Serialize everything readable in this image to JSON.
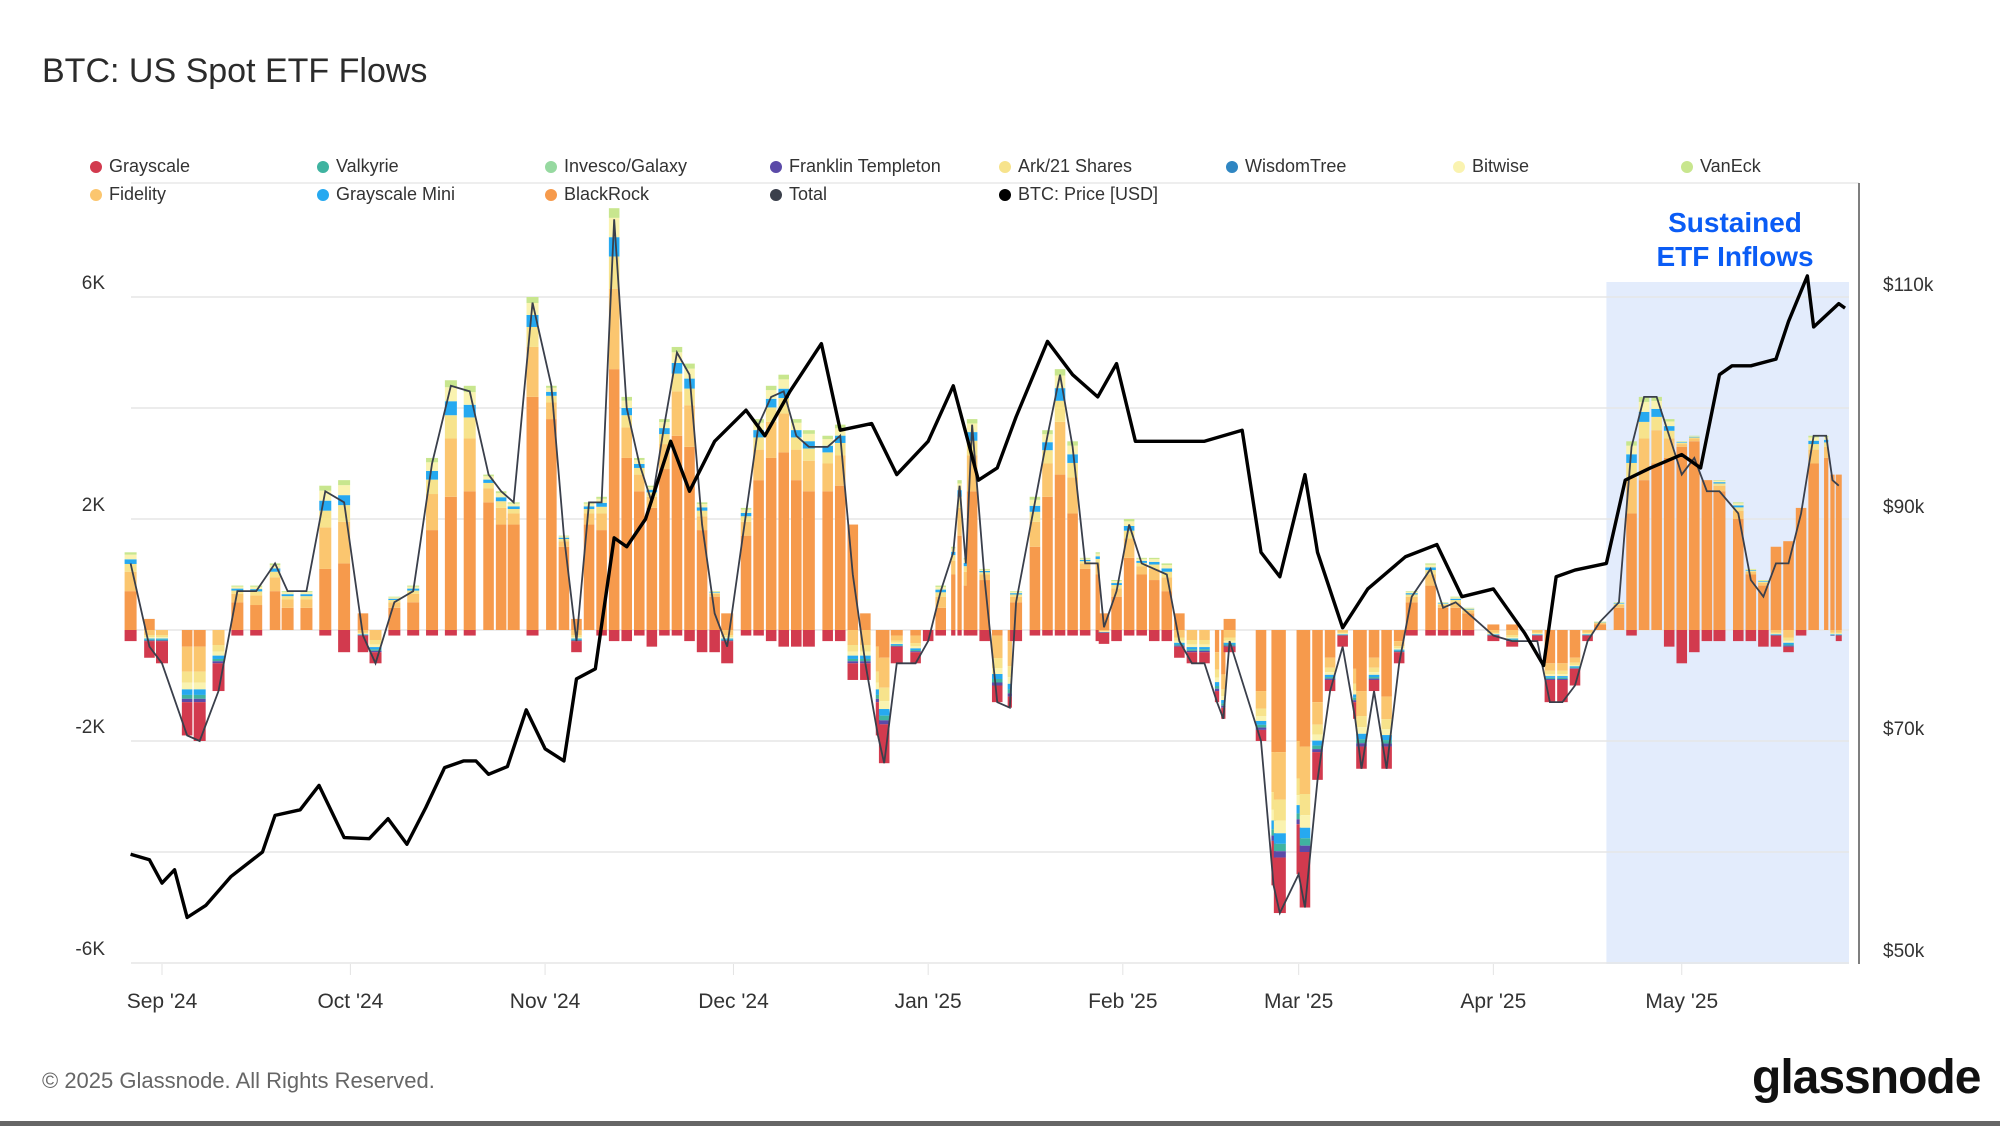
{
  "chart_data": {
    "type": "bar",
    "title": "BTC: US Spot ETF Flows",
    "annotation": "Sustained ETF Inflows",
    "annotation_lines": [
      "Sustained",
      "ETF Inflows"
    ],
    "highlight_range": [
      "2025-04-19",
      "2025-05-28"
    ],
    "legend": [
      {
        "name": "Grayscale",
        "color": "#d23a4e"
      },
      {
        "name": "Valkyrie",
        "color": "#3fb3a0"
      },
      {
        "name": "Invesco/Galaxy",
        "color": "#96d9a0"
      },
      {
        "name": "Franklin Templeton",
        "color": "#5b4aa8"
      },
      {
        "name": "Ark/21 Shares",
        "color": "#f7e38c"
      },
      {
        "name": "WisdomTree",
        "color": "#2f86c2"
      },
      {
        "name": "Bitwise",
        "color": "#faf3b0"
      },
      {
        "name": "VanEck",
        "color": "#c8e68e"
      },
      {
        "name": "Fidelity",
        "color": "#fbc66f"
      },
      {
        "name": "Grayscale Mini",
        "color": "#26a9f0"
      },
      {
        "name": "BlackRock",
        "color": "#f69a4c"
      },
      {
        "name": "Total",
        "color": "#3a3f4b"
      },
      {
        "name": "BTC: Price [USD]",
        "color": "#000000"
      }
    ],
    "legend_placement": "top",
    "y_left": {
      "ticks": [
        6000,
        2000,
        -2000,
        -6000
      ],
      "tick_labels": [
        "6K",
        "2K",
        "-2K",
        "-6K"
      ],
      "range": [
        -6000,
        6000
      ],
      "grid_step": 2000
    },
    "y_right": {
      "ticks": [
        110000,
        90000,
        70000,
        50000
      ],
      "tick_labels": [
        "$110k",
        "$90k",
        "$70k",
        "$50k"
      ],
      "range": [
        50000,
        110000
      ]
    },
    "x_ticks": [
      {
        "date": "2024-09-01",
        "label": "Sep '24"
      },
      {
        "date": "2024-10-01",
        "label": "Oct '24"
      },
      {
        "date": "2024-11-01",
        "label": "Nov '24"
      },
      {
        "date": "2024-12-01",
        "label": "Dec '24"
      },
      {
        "date": "2025-01-01",
        "label": "Jan '25"
      },
      {
        "date": "2025-02-01",
        "label": "Feb '25"
      },
      {
        "date": "2025-03-01",
        "label": "Mar '25"
      },
      {
        "date": "2025-04-01",
        "label": "Apr '25"
      },
      {
        "date": "2025-05-01",
        "label": "May '25"
      }
    ],
    "grid": true,
    "flows_columns": [
      "date",
      "Total",
      "BlackRock",
      "Grayscale"
    ],
    "flows": [
      [
        "2024-08-27",
        1200,
        700,
        -200
      ],
      [
        "2024-08-30",
        -300,
        200,
        -300
      ],
      [
        "2024-09-01",
        -600,
        0,
        -400
      ],
      [
        "2024-09-05",
        -1900,
        -300,
        -600
      ],
      [
        "2024-09-07",
        -2000,
        -300,
        -700
      ],
      [
        "2024-09-10",
        -1100,
        0,
        -500
      ],
      [
        "2024-09-13",
        700,
        500,
        -100
      ],
      [
        "2024-09-16",
        700,
        450,
        -100
      ],
      [
        "2024-09-19",
        1200,
        700,
        0
      ],
      [
        "2024-09-21",
        700,
        400,
        0
      ],
      [
        "2024-09-24",
        700,
        400,
        0
      ],
      [
        "2024-09-27",
        2500,
        1100,
        -100
      ],
      [
        "2024-09-30",
        2300,
        1200,
        -400
      ],
      [
        "2024-10-03",
        -100,
        300,
        -300
      ],
      [
        "2024-10-05",
        -600,
        0,
        -200
      ],
      [
        "2024-10-08",
        500,
        400,
        -100
      ],
      [
        "2024-10-11",
        700,
        500,
        -100
      ],
      [
        "2024-10-14",
        3000,
        1800,
        -100
      ],
      [
        "2024-10-17",
        4400,
        2400,
        -100
      ],
      [
        "2024-10-20",
        4300,
        2500,
        -100
      ],
      [
        "2024-10-23",
        2800,
        2300,
        0
      ],
      [
        "2024-10-25",
        2500,
        1900,
        0
      ],
      [
        "2024-10-27",
        2300,
        1900,
        0
      ],
      [
        "2024-10-30",
        5900,
        4200,
        -100
      ],
      [
        "2024-11-02",
        4400,
        3800,
        0
      ],
      [
        "2024-11-04",
        1700,
        1500,
        0
      ],
      [
        "2024-11-06",
        -200,
        200,
        -200
      ],
      [
        "2024-11-08",
        2300,
        1900,
        0
      ],
      [
        "2024-11-10",
        2300,
        1800,
        -100
      ],
      [
        "2024-11-12",
        7400,
        4700,
        -200
      ],
      [
        "2024-11-14",
        4000,
        3100,
        -200
      ],
      [
        "2024-11-16",
        3000,
        2500,
        -100
      ],
      [
        "2024-11-18",
        2300,
        2200,
        -300
      ],
      [
        "2024-11-20",
        3700,
        2900,
        -100
      ],
      [
        "2024-11-22",
        5000,
        3500,
        -100
      ],
      [
        "2024-11-24",
        4600,
        3300,
        -200
      ],
      [
        "2024-11-26",
        1900,
        1800,
        -400
      ],
      [
        "2024-11-28",
        300,
        600,
        -400
      ],
      [
        "2024-11-30",
        -300,
        300,
        -400
      ],
      [
        "2024-12-03",
        2100,
        1700,
        -100
      ],
      [
        "2024-12-05",
        3700,
        2700,
        -100
      ],
      [
        "2024-12-07",
        4200,
        3100,
        -200
      ],
      [
        "2024-12-09",
        4300,
        3200,
        -300
      ],
      [
        "2024-12-11",
        3500,
        2700,
        -300
      ],
      [
        "2024-12-13",
        3300,
        2500,
        -300
      ],
      [
        "2024-12-16",
        3300,
        2500,
        -200
      ],
      [
        "2024-12-18",
        3500,
        2600,
        -200
      ],
      [
        "2024-12-20",
        1000,
        1900,
        -300
      ],
      [
        "2024-12-22",
        -600,
        300,
        -300
      ],
      [
        "2024-12-24",
        -1900,
        -300,
        -600
      ],
      [
        "2024-12-25",
        -2400,
        -500,
        -700
      ],
      [
        "2024-12-27",
        -600,
        -100,
        -300
      ],
      [
        "2024-12-30",
        -600,
        -100,
        -200
      ],
      [
        "2025-01-01",
        -200,
        0,
        -200
      ],
      [
        "2025-01-03",
        700,
        400,
        -100
      ],
      [
        "2025-01-05",
        1400,
        1000,
        -100
      ],
      [
        "2025-01-06",
        2600,
        1700,
        -100
      ],
      [
        "2025-01-07",
        1200,
        800,
        -100
      ],
      [
        "2025-01-08",
        3700,
        2500,
        -100
      ],
      [
        "2025-01-10",
        900,
        900,
        -200
      ],
      [
        "2025-01-12",
        -1300,
        -100,
        -300
      ],
      [
        "2025-01-14",
        -1400,
        -200,
        -200
      ],
      [
        "2025-01-15",
        500,
        500,
        -200
      ],
      [
        "2025-01-18",
        2300,
        1500,
        -100
      ],
      [
        "2025-01-20",
        3500,
        2400,
        -100
      ],
      [
        "2025-01-22",
        4600,
        2800,
        -100
      ],
      [
        "2025-01-24",
        3300,
        2100,
        -100
      ],
      [
        "2025-01-26",
        1200,
        1100,
        -100
      ],
      [
        "2025-01-28",
        1200,
        1000,
        -200
      ],
      [
        "2025-01-29",
        50,
        300,
        -200
      ],
      [
        "2025-01-31",
        700,
        600,
        -200
      ],
      [
        "2025-02-02",
        1900,
        1300,
        -100
      ],
      [
        "2025-02-04",
        1200,
        1000,
        -100
      ],
      [
        "2025-02-06",
        1100,
        900,
        -200
      ],
      [
        "2025-02-08",
        1000,
        700,
        -200
      ],
      [
        "2025-02-10",
        -200,
        300,
        -200
      ],
      [
        "2025-02-12",
        -600,
        0,
        -200
      ],
      [
        "2025-02-14",
        -600,
        0,
        -200
      ],
      [
        "2025-02-16",
        -1300,
        -400,
        -200
      ],
      [
        "2025-02-17",
        -1600,
        -800,
        -200
      ],
      [
        "2025-02-18",
        -200,
        200,
        -100
      ],
      [
        "2025-02-23",
        -2000,
        -1100,
        -200
      ],
      [
        "2025-02-25",
        -4600,
        -2200,
        -800
      ],
      [
        "2025-02-26",
        -5100,
        -2200,
        -1000
      ],
      [
        "2025-03-01",
        -4400,
        -2000,
        -900
      ],
      [
        "2025-03-02",
        -5000,
        -2100,
        -1000
      ],
      [
        "2025-03-04",
        -2700,
        -1300,
        -500
      ],
      [
        "2025-03-06",
        -1100,
        -500,
        -200
      ],
      [
        "2025-03-08",
        -300,
        0,
        -200
      ],
      [
        "2025-03-10",
        -1600,
        -700,
        -300
      ],
      [
        "2025-03-11",
        -2500,
        -1100,
        -400
      ],
      [
        "2025-03-13",
        -1100,
        -500,
        -200
      ],
      [
        "2025-03-15",
        -2500,
        -1200,
        -400
      ],
      [
        "2025-03-17",
        -600,
        -200,
        -200
      ],
      [
        "2025-03-19",
        600,
        500,
        -100
      ],
      [
        "2025-03-22",
        1100,
        800,
        -100
      ],
      [
        "2025-03-24",
        400,
        400,
        -100
      ],
      [
        "2025-03-26",
        500,
        400,
        -100
      ],
      [
        "2025-03-28",
        300,
        300,
        -100
      ],
      [
        "2025-04-01",
        -100,
        100,
        -100
      ],
      [
        "2025-04-04",
        -200,
        100,
        -100
      ],
      [
        "2025-04-08",
        -200,
        0,
        -100
      ],
      [
        "2025-04-10",
        -1300,
        -600,
        -400
      ],
      [
        "2025-04-12",
        -1300,
        -600,
        -400
      ],
      [
        "2025-04-14",
        -1000,
        -500,
        -300
      ],
      [
        "2025-04-16",
        -200,
        0,
        -100
      ],
      [
        "2025-04-18",
        150,
        100,
        0
      ],
      [
        "2025-04-21",
        500,
        400,
        0
      ],
      [
        "2025-04-23",
        3300,
        2100,
        -100
      ],
      [
        "2025-04-25",
        4200,
        2700,
        0
      ],
      [
        "2025-04-27",
        4200,
        3000,
        0
      ],
      [
        "2025-04-29",
        3500,
        3100,
        -300
      ],
      [
        "2025-05-01",
        2800,
        3300,
        -600
      ],
      [
        "2025-05-03",
        3100,
        3400,
        -400
      ],
      [
        "2025-05-05",
        2500,
        2700,
        -200
      ],
      [
        "2025-05-07",
        2500,
        2500,
        -200
      ],
      [
        "2025-05-10",
        2100,
        2000,
        -200
      ],
      [
        "2025-05-12",
        900,
        1000,
        -200
      ],
      [
        "2025-05-14",
        600,
        800,
        -300
      ],
      [
        "2025-05-16",
        1200,
        1500,
        -200
      ],
      [
        "2025-05-18",
        1200,
        1600,
        -100
      ],
      [
        "2025-05-20",
        2100,
        2200,
        -100
      ],
      [
        "2025-05-22",
        3500,
        3000,
        0
      ],
      [
        "2025-05-24",
        3500,
        3100,
        0
      ],
      [
        "2025-05-25",
        2700,
        2800,
        0
      ],
      [
        "2025-05-26",
        2600,
        2800,
        -100
      ]
    ],
    "price_columns": [
      "date",
      "BTC: Price [USD]"
    ],
    "price": [
      [
        "2024-08-27",
        59800
      ],
      [
        "2024-08-30",
        59300
      ],
      [
        "2024-09-01",
        57200
      ],
      [
        "2024-09-03",
        58400
      ],
      [
        "2024-09-05",
        54100
      ],
      [
        "2024-09-08",
        55200
      ],
      [
        "2024-09-12",
        57800
      ],
      [
        "2024-09-17",
        60000
      ],
      [
        "2024-09-19",
        63300
      ],
      [
        "2024-09-23",
        63800
      ],
      [
        "2024-09-26",
        66000
      ],
      [
        "2024-09-30",
        61300
      ],
      [
        "2024-10-04",
        61200
      ],
      [
        "2024-10-07",
        63000
      ],
      [
        "2024-10-10",
        60700
      ],
      [
        "2024-10-13",
        64000
      ],
      [
        "2024-10-16",
        67600
      ],
      [
        "2024-10-19",
        68200
      ],
      [
        "2024-10-21",
        68200
      ],
      [
        "2024-10-23",
        67000
      ],
      [
        "2024-10-26",
        67700
      ],
      [
        "2024-10-29",
        72800
      ],
      [
        "2024-11-01",
        69300
      ],
      [
        "2024-11-04",
        68200
      ],
      [
        "2024-11-06",
        75600
      ],
      [
        "2024-11-09",
        76500
      ],
      [
        "2024-11-12",
        88300
      ],
      [
        "2024-11-14",
        87500
      ],
      [
        "2024-11-17",
        90000
      ],
      [
        "2024-11-21",
        97000
      ],
      [
        "2024-11-24",
        92500
      ],
      [
        "2024-11-28",
        97000
      ],
      [
        "2024-12-03",
        99800
      ],
      [
        "2024-12-06",
        97500
      ],
      [
        "2024-12-10",
        101500
      ],
      [
        "2024-12-15",
        105800
      ],
      [
        "2024-12-18",
        98000
      ],
      [
        "2024-12-23",
        98600
      ],
      [
        "2024-12-27",
        94000
      ],
      [
        "2025-01-01",
        97000
      ],
      [
        "2025-01-05",
        102000
      ],
      [
        "2025-01-09",
        93500
      ],
      [
        "2025-01-12",
        94600
      ],
      [
        "2025-01-15",
        99200
      ],
      [
        "2025-01-20",
        106000
      ],
      [
        "2025-01-24",
        103000
      ],
      [
        "2025-01-28",
        101000
      ],
      [
        "2025-01-31",
        104000
      ],
      [
        "2025-02-03",
        97000
      ],
      [
        "2025-02-07",
        97000
      ],
      [
        "2025-02-14",
        97000
      ],
      [
        "2025-02-20",
        98000
      ],
      [
        "2025-02-23",
        87000
      ],
      [
        "2025-02-26",
        84800
      ],
      [
        "2025-03-02",
        94000
      ],
      [
        "2025-03-04",
        87000
      ],
      [
        "2025-03-08",
        80200
      ],
      [
        "2025-03-12",
        83700
      ],
      [
        "2025-03-18",
        86600
      ],
      [
        "2025-03-23",
        87700
      ],
      [
        "2025-03-27",
        83000
      ],
      [
        "2025-04-01",
        83700
      ],
      [
        "2025-04-06",
        79700
      ],
      [
        "2025-04-09",
        76800
      ],
      [
        "2025-04-11",
        84800
      ],
      [
        "2025-04-14",
        85400
      ],
      [
        "2025-04-19",
        86000
      ],
      [
        "2025-04-22",
        93500
      ],
      [
        "2025-04-26",
        94600
      ],
      [
        "2025-05-01",
        95800
      ],
      [
        "2025-05-04",
        94600
      ],
      [
        "2025-05-07",
        103000
      ],
      [
        "2025-05-09",
        103800
      ],
      [
        "2025-05-12",
        103800
      ],
      [
        "2025-05-16",
        104400
      ],
      [
        "2025-05-18",
        107800
      ],
      [
        "2025-05-21",
        111900
      ],
      [
        "2025-05-22",
        107300
      ],
      [
        "2025-05-26",
        109400
      ],
      [
        "2025-05-27",
        109000
      ]
    ]
  },
  "footer": {
    "copyright": "© 2025 Glassnode. All Rights Reserved.",
    "logo": "glassnode"
  }
}
